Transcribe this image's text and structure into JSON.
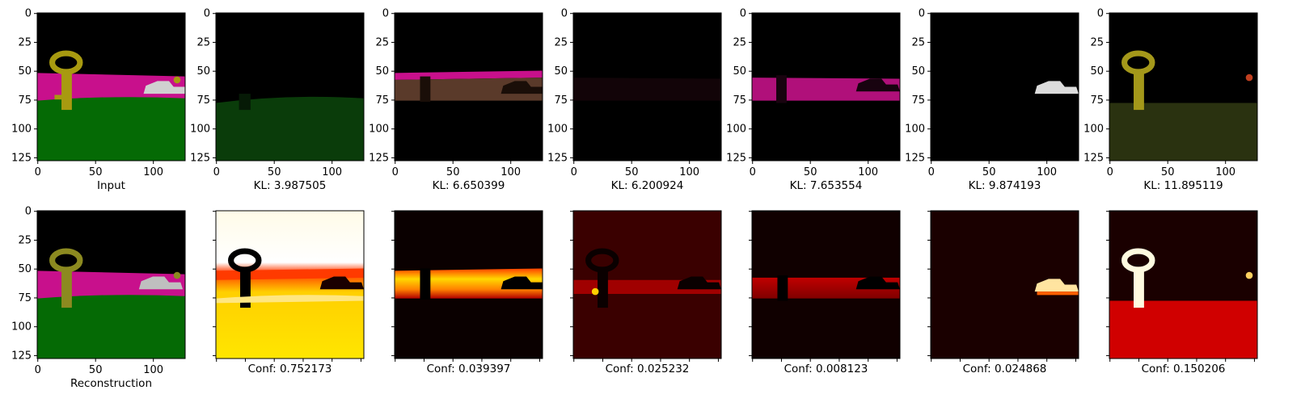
{
  "chart_data": {
    "type": "image-grid",
    "rows": 2,
    "columns": 7,
    "image_size": [
      128,
      128
    ],
    "axis_ticks": [
      0,
      25,
      50,
      75,
      100,
      125
    ],
    "axis_tick_labels": [
      "0",
      "25",
      "50",
      "75",
      "100",
      "125"
    ],
    "x_tick_labels": [
      "0",
      "50",
      "100"
    ],
    "top_row": {
      "captions": [
        "Input",
        "KL: 3.987505",
        "KL: 6.650399",
        "KL: 6.200924",
        "KL: 7.653554",
        "KL: 9.874193",
        "KL: 11.895119"
      ],
      "kl_values": [
        null,
        3.987505,
        6.650399,
        6.200924,
        7.653554,
        9.874193,
        11.895119
      ]
    },
    "bottom_row": {
      "captions": [
        "Reconstruction",
        "Conf: 0.752173",
        "Conf: 0.039397",
        "Conf: 0.025232",
        "Conf: 0.008123",
        "Conf: 0.024868",
        "Conf: 0.150206"
      ],
      "conf_values": [
        null,
        0.752173,
        0.039397,
        0.025232,
        0.008123,
        0.024868,
        0.150206
      ]
    },
    "scene_colors": {
      "sky": "#000000",
      "wall": "#c8108c",
      "ground": "#056a05",
      "key": "#a89a10",
      "car": "#d0d0d0"
    },
    "heatmap_colormap": "hot"
  }
}
